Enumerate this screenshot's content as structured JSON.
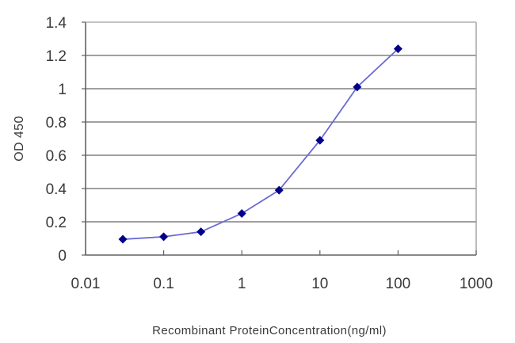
{
  "chart_data": {
    "type": "line",
    "title": "",
    "xlabel": "Recombinant ProteinConcentration(ng/ml)",
    "ylabel": "OD 450",
    "x_scale": "log",
    "xlim": [
      0.01,
      1000
    ],
    "ylim": [
      0,
      1.4
    ],
    "x_ticks": [
      "0.01",
      "0.1",
      "1",
      "10",
      "100",
      "1000"
    ],
    "y_ticks": [
      "0",
      "0.2",
      "0.4",
      "0.6",
      "0.8",
      "1",
      "1.2",
      "1.4"
    ],
    "grid": {
      "horizontal": true,
      "vertical": false
    },
    "legend": null,
    "series": [
      {
        "name": "OD 450",
        "color": "#00008b",
        "line_color": "#6a6ad0",
        "marker": "diamond",
        "x": [
          0.03,
          0.1,
          0.3,
          1,
          3,
          10,
          30,
          100
        ],
        "values": [
          0.095,
          0.11,
          0.14,
          0.25,
          0.39,
          0.69,
          1.01,
          1.24
        ]
      }
    ]
  },
  "colors": {
    "gridline": "#808080",
    "axis": "#606060",
    "background": "#ffffff"
  }
}
